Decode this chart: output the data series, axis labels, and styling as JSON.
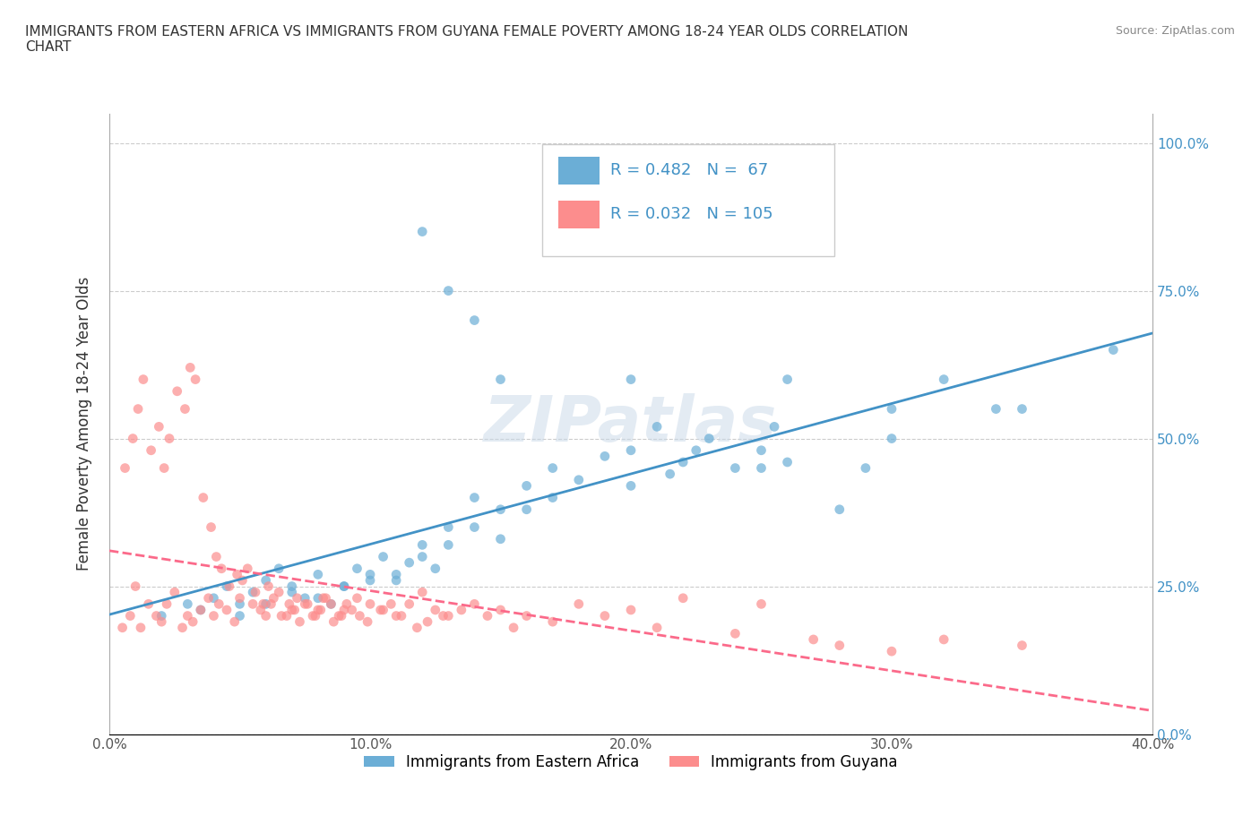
{
  "title": "IMMIGRANTS FROM EASTERN AFRICA VS IMMIGRANTS FROM GUYANA FEMALE POVERTY AMONG 18-24 YEAR OLDS CORRELATION\nCHART",
  "source": "Source: ZipAtlas.com",
  "xlabel_blue": "Immigrants from Eastern Africa",
  "xlabel_pink": "Immigrants from Guyana",
  "ylabel": "Female Poverty Among 18-24 Year Olds",
  "xlim": [
    0.0,
    0.4
  ],
  "ylim": [
    0.0,
    1.05
  ],
  "yticks": [
    0.0,
    0.25,
    0.5,
    0.75,
    1.0
  ],
  "ytick_labels": [
    "0.0%",
    "25.0%",
    "50.0%",
    "75.0%",
    "100.0%"
  ],
  "xticks": [
    0.0,
    0.1,
    0.2,
    0.3,
    0.4
  ],
  "xtick_labels": [
    "0.0%",
    "10.0%",
    "20.0%",
    "30.0%",
    "40.0%"
  ],
  "blue_color": "#6baed6",
  "pink_color": "#fc8d8d",
  "blue_line_color": "#4292c6",
  "pink_line_color": "#fb6a8a",
  "R_blue": 0.482,
  "N_blue": 67,
  "R_pink": 0.032,
  "N_pink": 105,
  "watermark": "ZIPatlas",
  "background_color": "#ffffff",
  "grid_color": "#cccccc",
  "blue_scatter": {
    "x": [
      0.02,
      0.03,
      0.035,
      0.04,
      0.045,
      0.05,
      0.055,
      0.06,
      0.065,
      0.07,
      0.075,
      0.08,
      0.085,
      0.09,
      0.095,
      0.1,
      0.105,
      0.11,
      0.115,
      0.12,
      0.125,
      0.13,
      0.14,
      0.15,
      0.16,
      0.17,
      0.18,
      0.19,
      0.2,
      0.21,
      0.215,
      0.22,
      0.225,
      0.23,
      0.24,
      0.25,
      0.255,
      0.26,
      0.28,
      0.29,
      0.3,
      0.32,
      0.34,
      0.26,
      0.12,
      0.13,
      0.14,
      0.15,
      0.05,
      0.06,
      0.07,
      0.08,
      0.09,
      0.1,
      0.11,
      0.12,
      0.13,
      0.14,
      0.15,
      0.16,
      0.17,
      0.2,
      0.25,
      0.3,
      0.35,
      0.385,
      0.2
    ],
    "y": [
      0.2,
      0.22,
      0.21,
      0.23,
      0.25,
      0.22,
      0.24,
      0.26,
      0.28,
      0.25,
      0.23,
      0.27,
      0.22,
      0.25,
      0.28,
      0.26,
      0.3,
      0.27,
      0.29,
      0.32,
      0.28,
      0.35,
      0.4,
      0.38,
      0.42,
      0.45,
      0.43,
      0.47,
      0.48,
      0.52,
      0.44,
      0.46,
      0.48,
      0.5,
      0.45,
      0.48,
      0.52,
      0.46,
      0.38,
      0.45,
      0.55,
      0.6,
      0.55,
      0.6,
      0.85,
      0.75,
      0.7,
      0.6,
      0.2,
      0.22,
      0.24,
      0.23,
      0.25,
      0.27,
      0.26,
      0.3,
      0.32,
      0.35,
      0.33,
      0.38,
      0.4,
      0.42,
      0.45,
      0.5,
      0.55,
      0.65,
      0.6
    ]
  },
  "pink_scatter": {
    "x": [
      0.005,
      0.008,
      0.01,
      0.012,
      0.015,
      0.018,
      0.02,
      0.022,
      0.025,
      0.028,
      0.03,
      0.032,
      0.035,
      0.038,
      0.04,
      0.042,
      0.045,
      0.048,
      0.05,
      0.055,
      0.058,
      0.06,
      0.062,
      0.065,
      0.068,
      0.07,
      0.072,
      0.075,
      0.078,
      0.08,
      0.082,
      0.085,
      0.088,
      0.09,
      0.095,
      0.1,
      0.105,
      0.11,
      0.115,
      0.12,
      0.125,
      0.13,
      0.14,
      0.15,
      0.16,
      0.18,
      0.2,
      0.22,
      0.25,
      0.28,
      0.3,
      0.32,
      0.35,
      0.006,
      0.009,
      0.011,
      0.013,
      0.016,
      0.019,
      0.021,
      0.023,
      0.026,
      0.029,
      0.031,
      0.033,
      0.036,
      0.039,
      0.041,
      0.043,
      0.046,
      0.049,
      0.051,
      0.053,
      0.056,
      0.059,
      0.061,
      0.063,
      0.066,
      0.069,
      0.071,
      0.073,
      0.076,
      0.079,
      0.081,
      0.083,
      0.086,
      0.089,
      0.091,
      0.093,
      0.096,
      0.099,
      0.104,
      0.108,
      0.112,
      0.118,
      0.122,
      0.128,
      0.135,
      0.145,
      0.155,
      0.17,
      0.19,
      0.21,
      0.24,
      0.27
    ],
    "y": [
      0.18,
      0.2,
      0.25,
      0.18,
      0.22,
      0.2,
      0.19,
      0.22,
      0.24,
      0.18,
      0.2,
      0.19,
      0.21,
      0.23,
      0.2,
      0.22,
      0.21,
      0.19,
      0.23,
      0.22,
      0.21,
      0.2,
      0.22,
      0.24,
      0.2,
      0.21,
      0.23,
      0.22,
      0.2,
      0.21,
      0.23,
      0.22,
      0.2,
      0.21,
      0.23,
      0.22,
      0.21,
      0.2,
      0.22,
      0.24,
      0.21,
      0.2,
      0.22,
      0.21,
      0.2,
      0.22,
      0.21,
      0.23,
      0.22,
      0.15,
      0.14,
      0.16,
      0.15,
      0.45,
      0.5,
      0.55,
      0.6,
      0.48,
      0.52,
      0.45,
      0.5,
      0.58,
      0.55,
      0.62,
      0.6,
      0.4,
      0.35,
      0.3,
      0.28,
      0.25,
      0.27,
      0.26,
      0.28,
      0.24,
      0.22,
      0.25,
      0.23,
      0.2,
      0.22,
      0.21,
      0.19,
      0.22,
      0.2,
      0.21,
      0.23,
      0.19,
      0.2,
      0.22,
      0.21,
      0.2,
      0.19,
      0.21,
      0.22,
      0.2,
      0.18,
      0.19,
      0.2,
      0.21,
      0.2,
      0.18,
      0.19,
      0.2,
      0.18,
      0.17,
      0.16
    ]
  }
}
